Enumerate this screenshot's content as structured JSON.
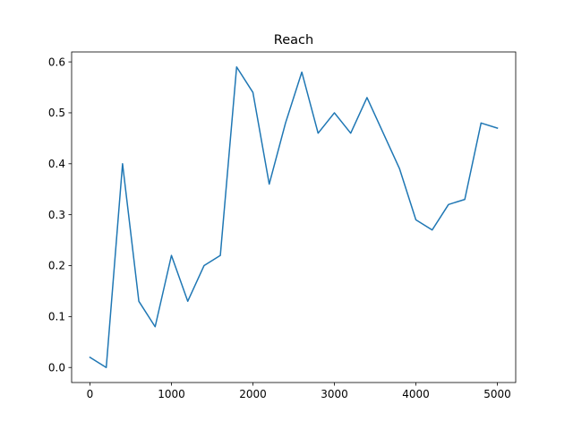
{
  "chart_data": {
    "type": "line",
    "title": "Reach",
    "xlabel": "",
    "ylabel": "",
    "xlim": [
      -225,
      5225
    ],
    "ylim": [
      -0.0295,
      0.6195
    ],
    "x_ticks": [
      0,
      1000,
      2000,
      3000,
      4000,
      5000
    ],
    "y_ticks": [
      0.0,
      0.1,
      0.2,
      0.3,
      0.4,
      0.5,
      0.6
    ],
    "x_tick_labels": [
      "0",
      "1000",
      "2000",
      "3000",
      "4000",
      "5000"
    ],
    "y_tick_labels": [
      "0.0",
      "0.1",
      "0.2",
      "0.3",
      "0.4",
      "0.5",
      "0.6"
    ],
    "grid": false,
    "legend": "none",
    "series": [
      {
        "color": "#1f77b4",
        "x": [
          0,
          200,
          400,
          600,
          800,
          1000,
          1200,
          1400,
          1600,
          1800,
          2000,
          2200,
          2400,
          2600,
          2800,
          3000,
          3200,
          3400,
          3600,
          3800,
          4000,
          4200,
          4400,
          4600,
          4800,
          5000
        ],
        "y": [
          0.02,
          0.0,
          0.4,
          0.13,
          0.08,
          0.22,
          0.13,
          0.2,
          0.22,
          0.59,
          0.54,
          0.36,
          0.48,
          0.58,
          0.46,
          0.5,
          0.46,
          0.53,
          0.46,
          0.39,
          0.29,
          0.27,
          0.32,
          0.33,
          0.48,
          0.47
        ]
      }
    ]
  }
}
